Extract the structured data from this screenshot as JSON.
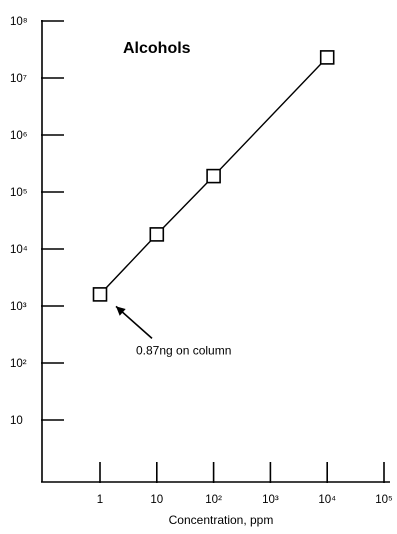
{
  "chart_data": {
    "type": "line",
    "title": "Alcohols",
    "xlabel": "Concentration, ppm",
    "ylabel": "",
    "x_scale": "log",
    "y_scale": "log",
    "xlim": [
      0.1,
      100000
    ],
    "ylim": [
      1,
      100000000
    ],
    "grid": false,
    "x_ticks": [
      {
        "value": 1,
        "label": "1"
      },
      {
        "value": 10,
        "label": "10"
      },
      {
        "value": 100,
        "label": "10²"
      },
      {
        "value": 1000,
        "label": "10³"
      },
      {
        "value": 10000,
        "label": "10⁴"
      },
      {
        "value": 100000,
        "label": "10⁵"
      }
    ],
    "y_ticks": [
      {
        "value": 10,
        "label": "10"
      },
      {
        "value": 100,
        "label": "10²"
      },
      {
        "value": 1000,
        "label": "10³"
      },
      {
        "value": 10000,
        "label": "10⁴"
      },
      {
        "value": 100000,
        "label": "10⁵"
      },
      {
        "value": 1000000,
        "label": "10⁶"
      },
      {
        "value": 10000000,
        "label": "10⁷"
      },
      {
        "value": 100000000,
        "label": "10⁸"
      }
    ],
    "series": [
      {
        "marker": "square",
        "color": "#000000",
        "points": [
          {
            "x": 1,
            "y": 1600
          },
          {
            "x": 10,
            "y": 18000
          },
          {
            "x": 100,
            "y": 190000
          },
          {
            "x": 10000,
            "y": 23000000
          }
        ]
      }
    ],
    "annotations": [
      {
        "text": "0.87ng on column",
        "point_x": 1,
        "point_y": 1600
      }
    ]
  }
}
